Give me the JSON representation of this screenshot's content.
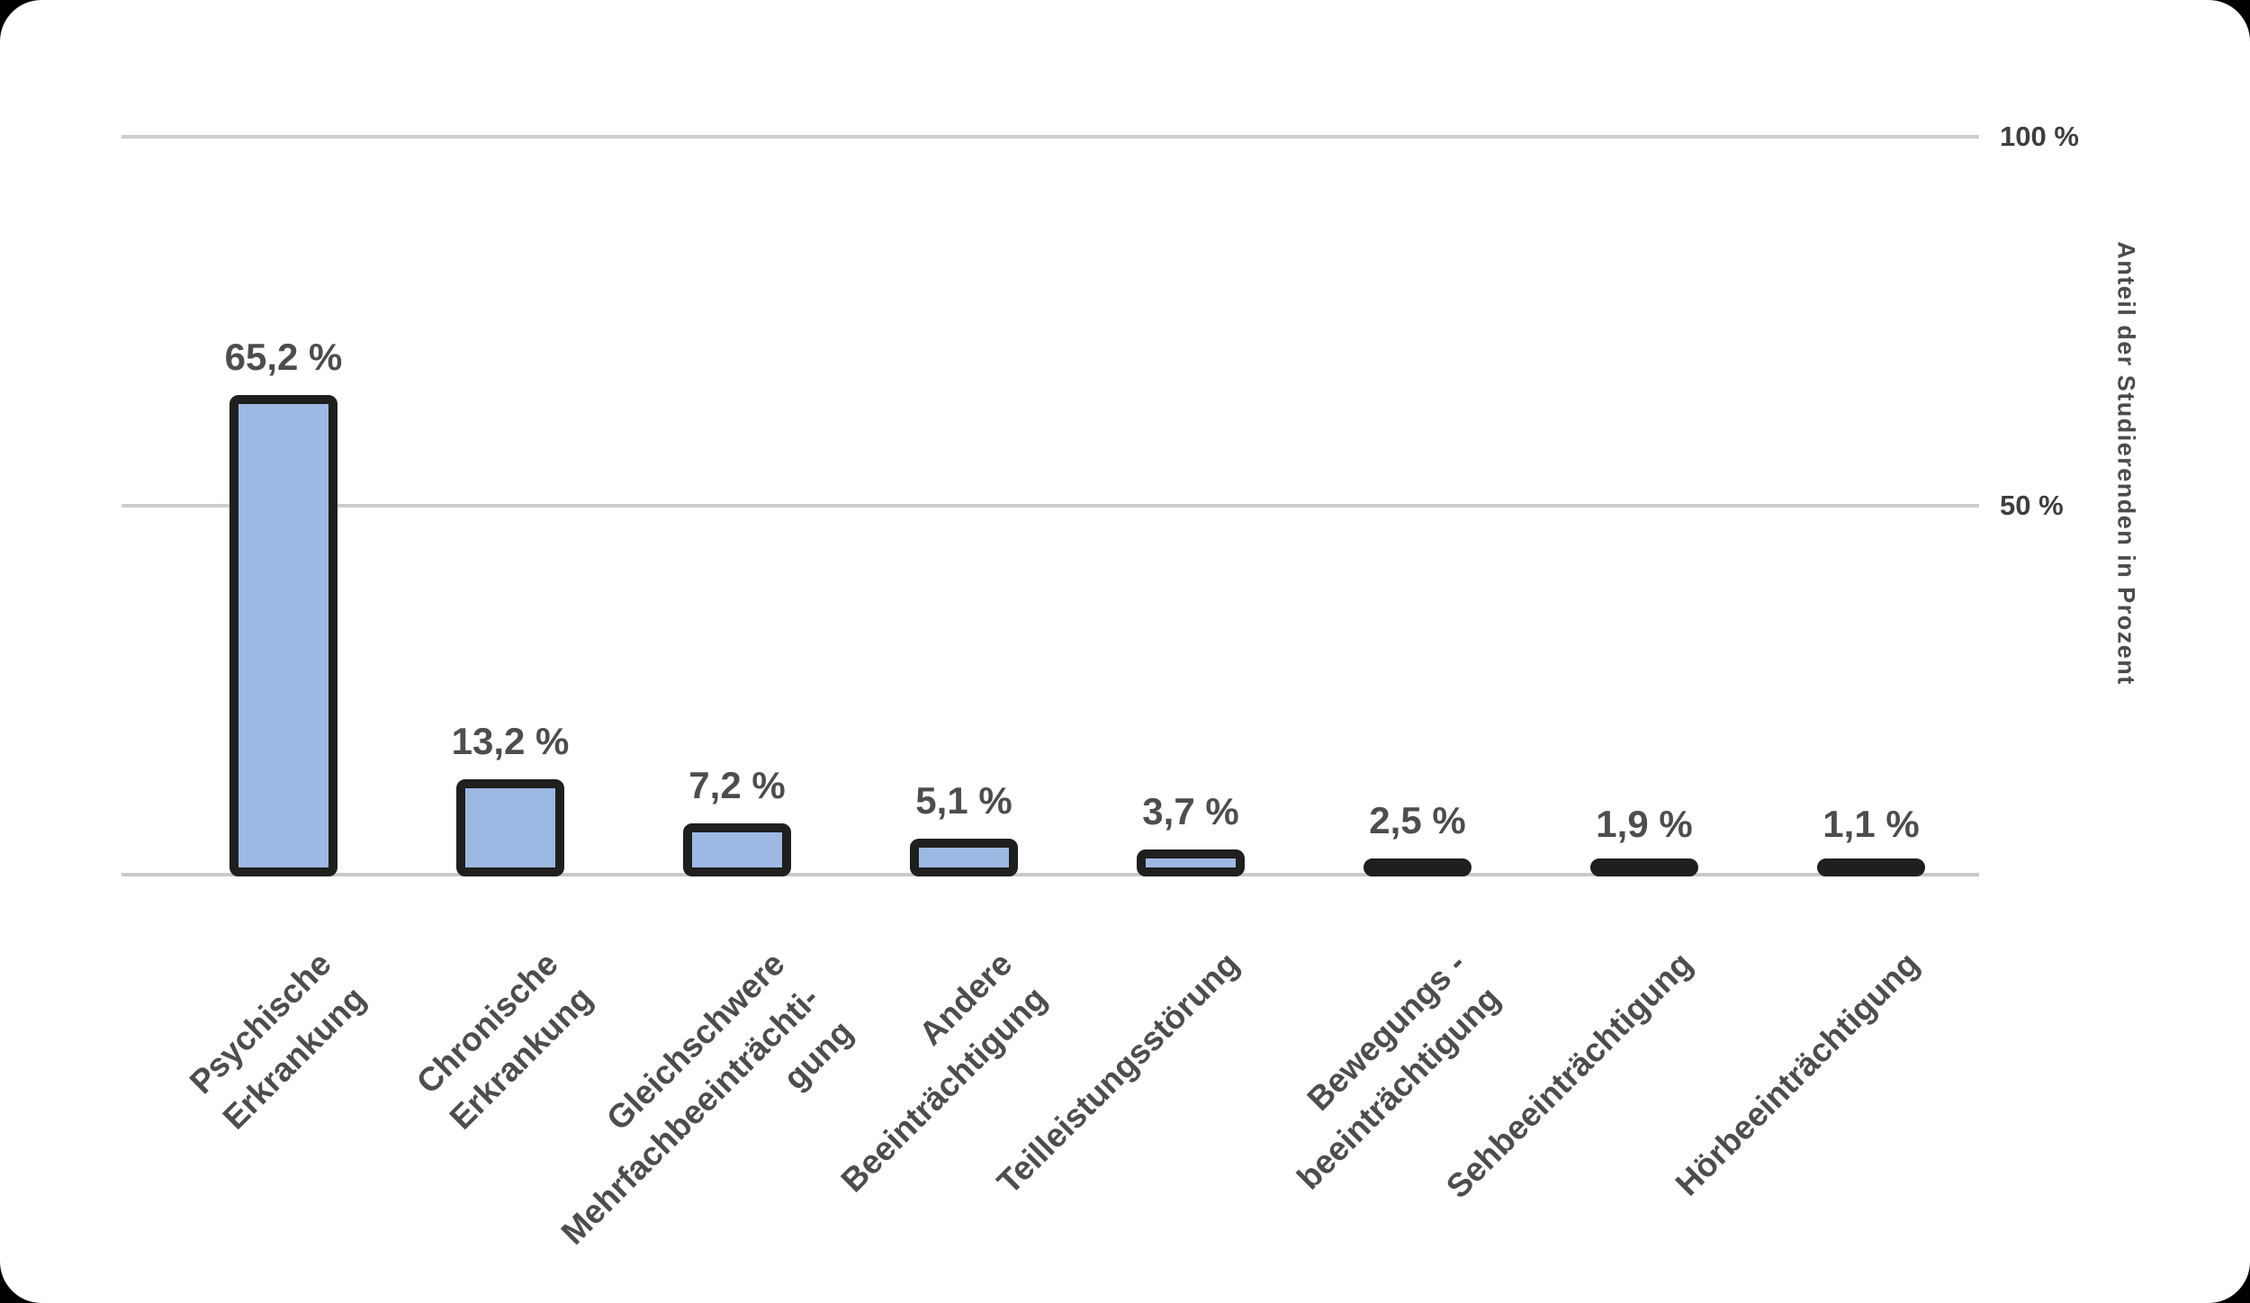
{
  "frame": {
    "background": "#000000",
    "card_background": "#ffffff"
  },
  "chart_data": {
    "type": "bar",
    "title": "",
    "categories": [
      "Psychische\nErkrankung",
      "Chronische\nErkrankung",
      "Gleichschwere\nMehrfachbeeinträchti-\ngung",
      "Andere\nBeeinträchtigung",
      "Teilleistungsstörung",
      "Bewegungs -\nbeeinträchtigung",
      "Sehbeeinträchtigung",
      "Hörbeeinträchtigung"
    ],
    "values": [
      65.2,
      13.2,
      7.2,
      5.1,
      3.7,
      2.5,
      1.9,
      1.1
    ],
    "value_labels": [
      "65,2 %",
      "13,2 %",
      "7,2 %",
      "5,1 %",
      "3,7 %",
      "2,5 %",
      "1,9 %",
      "1,1 %"
    ],
    "xlabel": "",
    "ylabel": "Anteil der Studierenden in Prozent",
    "ylim": [
      0,
      100
    ],
    "yticks": [
      {
        "label": "100 %",
        "value": 100
      },
      {
        "label": "50 %",
        "value": 50
      }
    ],
    "grid": "horizontal-only",
    "legend": "none",
    "bar_fill": "#9cb9e4",
    "bar_border": "#1f1f1d",
    "grid_color": "#cdcdcd",
    "text_color": "#4d4d4d"
  }
}
